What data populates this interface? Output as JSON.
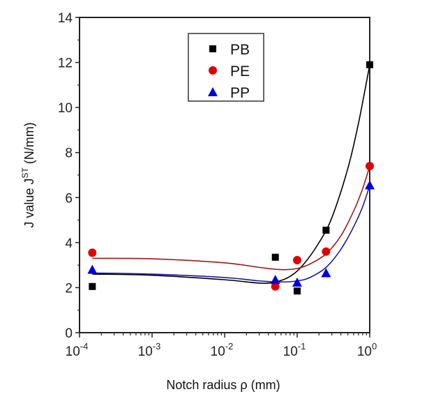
{
  "chart_data": {
    "type": "scatter",
    "title": "",
    "xlabel": "Notch radius ρ (mm)",
    "ylabel_prefix": "J value J",
    "ylabel_sup": "ST",
    "ylabel_suffix": " (N/mm)",
    "xscale": "log",
    "xlim": [
      0.0001,
      1
    ],
    "ylim": [
      0,
      14
    ],
    "xticks": [
      {
        "exp": "-4"
      },
      {
        "exp": "-3"
      },
      {
        "exp": "-2"
      },
      {
        "exp": "-1"
      },
      {
        "exp": "0"
      }
    ],
    "xtick_base": "10",
    "yticks": [
      "0",
      "2",
      "4",
      "6",
      "8",
      "10",
      "12",
      "14"
    ],
    "grid": false,
    "legend_position": "top-center",
    "series": [
      {
        "name": "PB",
        "marker": "square",
        "color": "#000000",
        "x": [
          0.00015,
          0.05,
          0.1,
          0.25,
          1
        ],
        "y": [
          2.05,
          3.35,
          1.85,
          4.55,
          11.9
        ],
        "fit_x": [
          0.00015,
          0.001,
          0.01,
          0.03,
          0.05,
          0.08,
          0.12,
          0.2,
          0.3,
          0.5,
          0.7,
          1
        ],
        "fit_y": [
          2.6,
          2.55,
          2.35,
          2.2,
          2.25,
          2.5,
          3.0,
          4.0,
          5.1,
          7.3,
          9.3,
          11.9
        ]
      },
      {
        "name": "PE",
        "marker": "circle",
        "color": "#e00000",
        "x": [
          0.00015,
          0.05,
          0.1,
          0.25,
          1
        ],
        "y": [
          3.55,
          2.05,
          3.22,
          3.6,
          7.4
        ],
        "fit_x": [
          0.00015,
          0.001,
          0.01,
          0.03,
          0.06,
          0.1,
          0.15,
          0.25,
          0.4,
          0.6,
          0.8,
          1
        ],
        "fit_y": [
          3.3,
          3.28,
          3.1,
          2.9,
          2.8,
          2.85,
          3.05,
          3.5,
          4.3,
          5.4,
          6.4,
          7.4
        ],
        "fit_color": "#a01818"
      },
      {
        "name": "PP",
        "marker": "triangle",
        "color": "#0000dd",
        "x": [
          0.00015,
          0.05,
          0.1,
          0.25,
          1
        ],
        "y": [
          2.8,
          2.35,
          2.23,
          2.65,
          6.55
        ],
        "fit_x": [
          0.00015,
          0.001,
          0.01,
          0.03,
          0.06,
          0.1,
          0.15,
          0.25,
          0.4,
          0.6,
          0.8,
          1
        ],
        "fit_y": [
          2.65,
          2.6,
          2.45,
          2.3,
          2.25,
          2.3,
          2.45,
          2.9,
          3.7,
          4.7,
          5.6,
          6.55
        ],
        "fit_color": "#1a1a9a"
      }
    ]
  }
}
